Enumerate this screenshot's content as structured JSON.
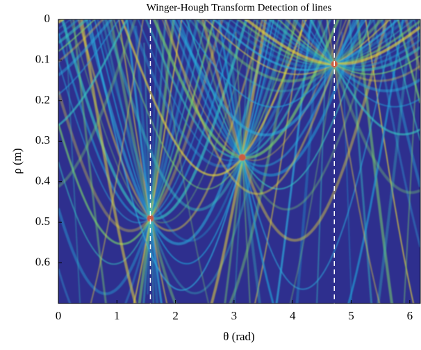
{
  "chart_data": {
    "type": "heatmap",
    "title": "Winger-Hough Transform Detection of lines",
    "x_label": "θ (rad)",
    "y_label": "ρ (m)",
    "xlim": [
      0,
      6.18
    ],
    "ylim": [
      0,
      0.7
    ],
    "y_inverted": true,
    "xticks": [
      0,
      1,
      2,
      3,
      4,
      5,
      6
    ],
    "yticks": [
      0,
      0.1,
      0.2,
      0.3,
      0.4,
      0.5,
      0.6
    ],
    "reference_lines": [
      1.571,
      4.712
    ],
    "reference_color": "#ffffff",
    "background_color": "#2e2f8e"
  }
}
